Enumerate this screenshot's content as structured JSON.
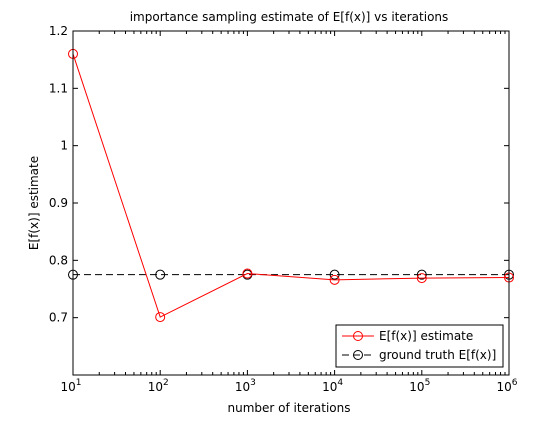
{
  "chart_data": {
    "type": "line",
    "title": "importance sampling estimate of E[f(x)] vs iterations",
    "xlabel": "number of iterations",
    "ylabel": "E[f(x)] estimate",
    "xscale": "log",
    "xlim": [
      10,
      1000000
    ],
    "ylim": [
      0.6,
      1.2
    ],
    "grid": false,
    "legend_position": "bottom-right",
    "x_ticks": [
      {
        "value": 10,
        "base": "10",
        "exp": "1"
      },
      {
        "value": 100,
        "base": "10",
        "exp": "2"
      },
      {
        "value": 1000,
        "base": "10",
        "exp": "3"
      },
      {
        "value": 10000,
        "base": "10",
        "exp": "4"
      },
      {
        "value": 100000,
        "base": "10",
        "exp": "5"
      },
      {
        "value": 1000000,
        "base": "10",
        "exp": "6"
      }
    ],
    "y_ticks": [
      {
        "value": 0.7,
        "label": "0.7"
      },
      {
        "value": 0.8,
        "label": "0.8"
      },
      {
        "value": 0.9,
        "label": "0.9"
      },
      {
        "value": 1.0,
        "label": "1"
      },
      {
        "value": 1.1,
        "label": "1.1"
      },
      {
        "value": 1.2,
        "label": "1.2"
      }
    ],
    "x": [
      10,
      100,
      1000,
      10000,
      100000,
      1000000
    ],
    "series": [
      {
        "name": "E[f(x)] estimate",
        "values": [
          1.16,
          0.701,
          0.777,
          0.766,
          0.769,
          0.77
        ],
        "color": "#ff0000",
        "line_style": "solid",
        "marker": "circle"
      },
      {
        "name": "ground truth E[f(x)]",
        "values": [
          0.775,
          0.775,
          0.775,
          0.775,
          0.775,
          0.775
        ],
        "color": "#000000",
        "line_style": "dashed",
        "marker": "circle"
      }
    ]
  }
}
